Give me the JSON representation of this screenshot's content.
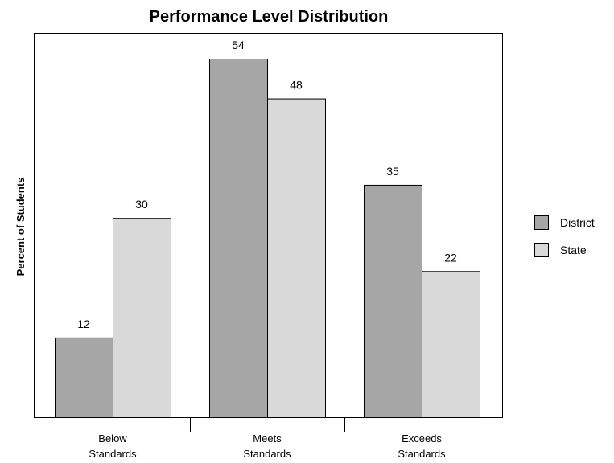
{
  "chart_data": {
    "type": "bar",
    "title": "Performance Level Distribution",
    "xlabel": "",
    "ylabel": "Percent of Students",
    "categories": [
      [
        "Below",
        "Standards"
      ],
      [
        "Meets",
        "Standards"
      ],
      [
        "Exceeds",
        "Standards"
      ]
    ],
    "series": [
      {
        "name": "District",
        "values": [
          12,
          54,
          35
        ],
        "color": "#a6a6a6"
      },
      {
        "name": "State",
        "values": [
          30,
          48,
          22
        ],
        "color": "#d9d9d9"
      }
    ],
    "ylim": [
      0,
      56
    ],
    "grid": false,
    "y_ticks_shown": false,
    "legend_position": "right",
    "data_labels": true
  }
}
